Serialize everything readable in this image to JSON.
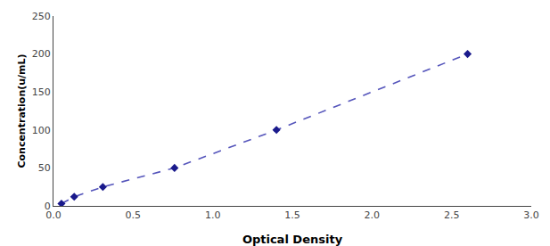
{
  "chart_data": {
    "type": "line",
    "xlabel": "Optical Density",
    "ylabel": "Concentration(u/mL)",
    "x": [
      0.05,
      0.13,
      0.31,
      0.76,
      1.4,
      2.6
    ],
    "series": [
      {
        "type": "line",
        "color": "#5555bb",
        "line_style": "dashed",
        "values": [
          3,
          12,
          25,
          50,
          100,
          200
        ]
      },
      {
        "type": "scatter",
        "color": "#1a1a8c",
        "marker": "diamond",
        "values": [
          3,
          12,
          25,
          50,
          100,
          200
        ]
      }
    ],
    "xlim": [
      0,
      3
    ],
    "ylim": [
      0,
      250
    ],
    "xticks": [
      {
        "value": 0,
        "label": "0.0"
      },
      0.5,
      {
        "value": 1,
        "label": "1.0"
      },
      1.5,
      {
        "value": 2,
        "label": "2.0"
      },
      2.5,
      {
        "value": 3,
        "label": "3.0"
      }
    ],
    "yticks": [
      0,
      50,
      100,
      150,
      200,
      250
    ],
    "grid": false
  }
}
